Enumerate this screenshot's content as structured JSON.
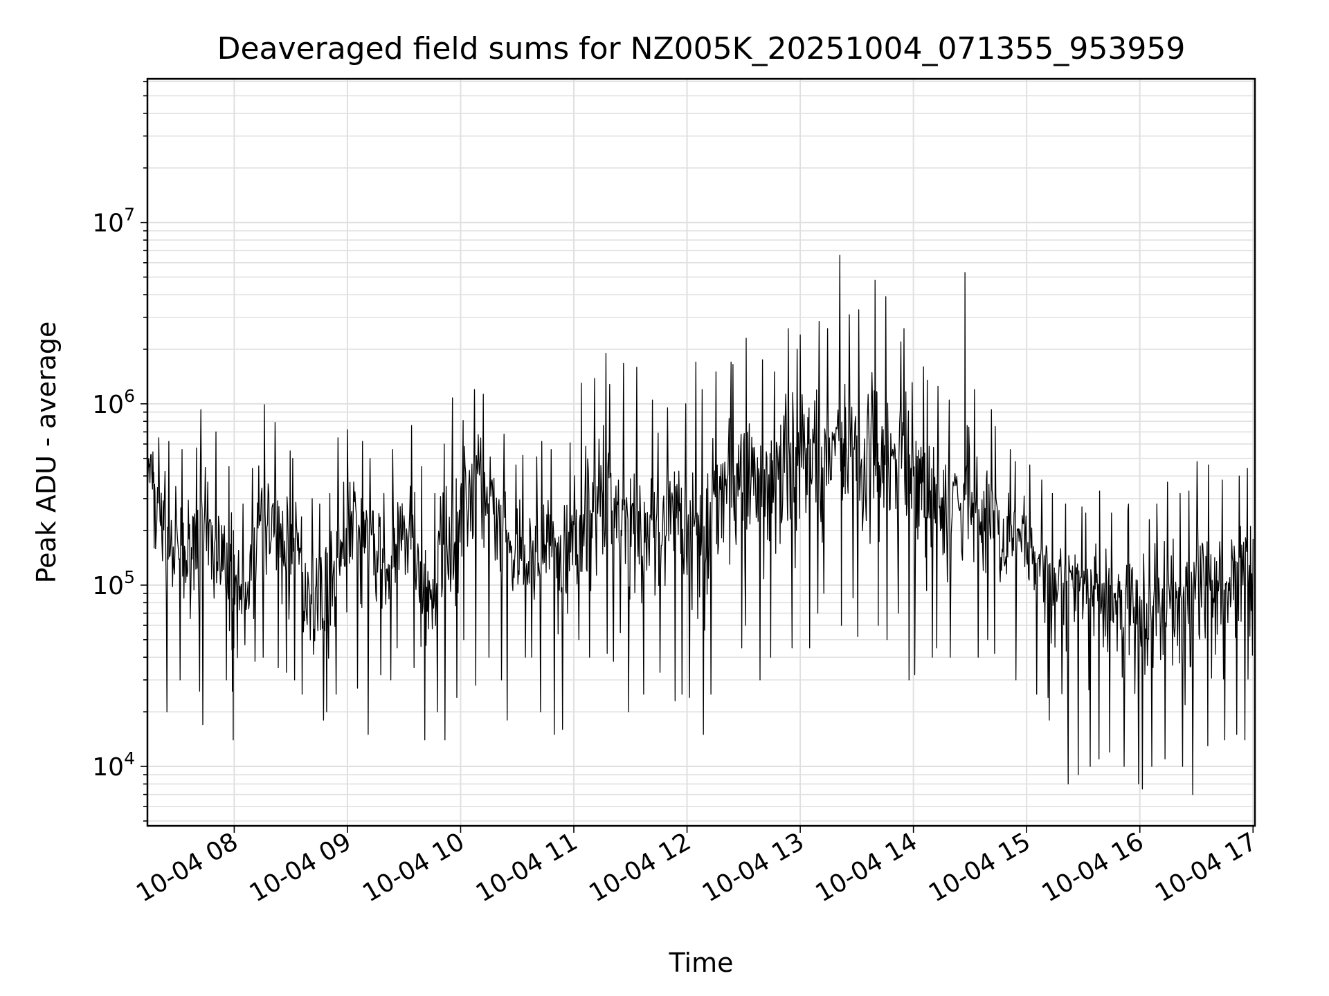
{
  "chart_data": {
    "type": "line",
    "title": "Deaveraged field sums for NZ005K_20251004_071355_953959",
    "xlabel": "Time",
    "ylabel": "Peak ADU - average",
    "yscale": "log",
    "ylim": [
      4700,
      62000000
    ],
    "xlim": [
      "2025-10-04 07:14",
      "2025-10-04 17:01"
    ],
    "grid": true,
    "line_color": "#000000",
    "grid_color": "#e0e0e0",
    "x_ticks": [
      "10-04 08",
      "10-04 09",
      "10-04 10",
      "10-04 11",
      "10-04 12",
      "10-04 13",
      "10-04 14",
      "10-04 15",
      "10-04 16",
      "10-04 17"
    ],
    "y_ticks": [
      {
        "base": "10",
        "exp": "4",
        "value": 10000
      },
      {
        "base": "10",
        "exp": "5",
        "value": 100000
      },
      {
        "base": "10",
        "exp": "6",
        "value": 1000000
      },
      {
        "base": "10",
        "exp": "7",
        "value": 10000000
      }
    ],
    "series": [
      {
        "name": "deaveraged field sum",
        "x_hours": [
          7.233,
          7.3,
          7.4,
          7.5,
          7.6,
          7.7,
          7.8,
          7.9,
          7.98,
          8.0,
          8.1,
          8.2,
          8.3,
          8.4,
          8.5,
          8.6,
          8.7,
          8.8,
          8.9,
          9.0,
          9.1,
          9.2,
          9.3,
          9.4,
          9.5,
          9.6,
          9.7,
          9.8,
          9.9,
          10.0,
          10.1,
          10.2,
          10.3,
          10.4,
          10.5,
          10.6,
          10.7,
          10.8,
          10.9,
          11.0,
          11.1,
          11.2,
          11.3,
          11.4,
          11.5,
          11.6,
          11.7,
          11.8,
          11.9,
          12.0,
          12.1,
          12.2,
          12.3,
          12.4,
          12.5,
          12.6,
          12.7,
          12.8,
          12.9,
          13.0,
          13.1,
          13.2,
          13.35,
          13.4,
          13.5,
          13.65,
          13.7,
          13.8,
          13.9,
          14.0,
          14.1,
          14.2,
          14.3,
          14.45,
          14.5,
          14.6,
          14.7,
          14.8,
          14.9,
          15.0,
          15.1,
          15.2,
          15.3,
          15.4,
          15.5,
          15.6,
          15.7,
          15.8,
          15.9,
          16.0,
          16.1,
          16.2,
          16.3,
          16.4,
          16.5,
          16.6,
          16.7,
          16.8,
          16.9,
          17.0
        ],
        "median": [
          420000,
          250000,
          160000,
          140000,
          200000,
          170000,
          140000,
          120000,
          60000,
          90000,
          110000,
          220000,
          240000,
          180000,
          150000,
          100000,
          90000,
          110000,
          170000,
          230000,
          210000,
          160000,
          120000,
          170000,
          200000,
          110000,
          90000,
          160000,
          230000,
          350000,
          400000,
          300000,
          200000,
          150000,
          130000,
          140000,
          160000,
          140000,
          160000,
          210000,
          330000,
          260000,
          300000,
          250000,
          230000,
          180000,
          160000,
          230000,
          270000,
          200000,
          230000,
          300000,
          330000,
          380000,
          420000,
          380000,
          430000,
          500000,
          520000,
          600000,
          560000,
          540000,
          600000,
          650000,
          560000,
          520000,
          440000,
          480000,
          460000,
          360000,
          300000,
          260000,
          250000,
          420000,
          250000,
          240000,
          210000,
          190000,
          170000,
          160000,
          140000,
          120000,
          100000,
          100000,
          90000,
          90000,
          90000,
          80000,
          70000,
          70000,
          80000,
          90000,
          80000,
          90000,
          100000,
          110000,
          100000,
          110000,
          120000,
          180000
        ],
        "max": [
          900000,
          650000,
          620000,
          560000,
          570000,
          930000,
          700000,
          450000,
          200000,
          280000,
          440000,
          990000,
          790000,
          550000,
          500000,
          300000,
          280000,
          320000,
          650000,
          720000,
          620000,
          500000,
          320000,
          560000,
          760000,
          450000,
          320000,
          600000,
          1080000,
          810000,
          1200000,
          1130000,
          680000,
          460000,
          520000,
          510000,
          620000,
          560000,
          610000,
          1300000,
          1380000,
          1900000,
          1280000,
          1670000,
          1590000,
          1050000,
          690000,
          950000,
          1000000,
          1700000,
          1200000,
          1500000,
          1700000,
          1650000,
          2300000,
          1750000,
          1500000,
          2600000,
          2000000,
          2400000,
          2850000,
          2600000,
          6600000,
          3100000,
          3300000,
          4800000,
          3900000,
          2200000,
          2600000,
          1600000,
          1350000,
          1250000,
          1050000,
          5300000,
          1200000,
          930000,
          750000,
          560000,
          480000,
          460000,
          380000,
          320000,
          280000,
          270000,
          250000,
          330000,
          250000,
          260000,
          280000,
          230000,
          280000,
          370000,
          320000,
          330000,
          480000,
          460000,
          380000,
          400000,
          440000,
          420000
        ],
        "min": [
          160000,
          55000,
          20000,
          30000,
          26000,
          17000,
          45000,
          30000,
          14000,
          17000,
          38000,
          40000,
          35000,
          33000,
          30000,
          25000,
          18000,
          20000,
          25000,
          27000,
          15000,
          32000,
          30000,
          45000,
          35000,
          14000,
          20000,
          14000,
          24000,
          50000,
          28000,
          40000,
          30000,
          18000,
          40000,
          40000,
          20000,
          15000,
          16000,
          50000,
          40000,
          42000,
          38000,
          20000,
          30000,
          25000,
          33000,
          23000,
          25000,
          24000,
          15000,
          25000,
          40000,
          45000,
          60000,
          30000,
          40000,
          40000,
          45000,
          45000,
          70000,
          90000,
          60000,
          85000,
          52000,
          60000,
          50000,
          70000,
          30000,
          32000,
          40000,
          45000,
          40000,
          70000,
          40000,
          50000,
          42000,
          35000,
          30000,
          25000,
          24000,
          18000,
          8000,
          9000,
          10000,
          11000,
          12000,
          10000,
          8000,
          7500,
          10000,
          11000,
          10000,
          7000,
          12000,
          13000,
          14000,
          15000,
          14000,
          45000
        ]
      }
    ]
  }
}
